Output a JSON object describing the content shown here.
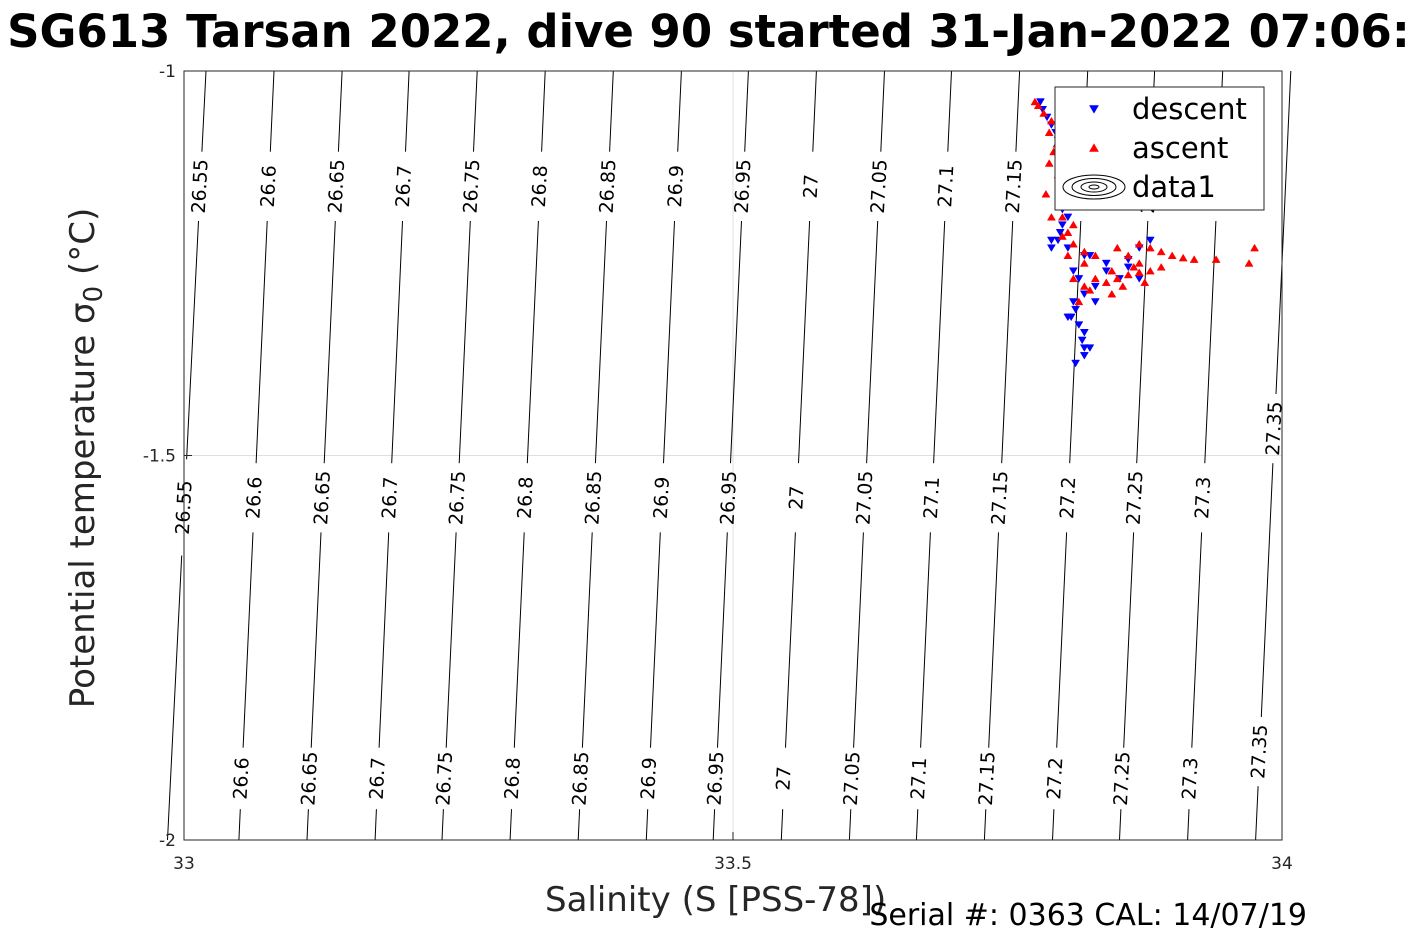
{
  "title": "SG613 Tarsan 2022, dive 90 started 31-Jan-2022 07:06:",
  "footer": "Serial #: 0363  CAL: 14/07/19",
  "chart_data": {
    "type": "scatter",
    "title": "SG613 Tarsan 2022, dive 90 started 31-Jan-2022 07:06:",
    "xlabel": "Salinity (S [PSS-78])",
    "ylabel": "Potential temperature σ0 (°C)",
    "xlim": [
      33,
      34
    ],
    "ylim": [
      -2,
      -1
    ],
    "xticks": [
      "33",
      "33.5",
      "34"
    ],
    "yticks": [
      "-1",
      "-1.5",
      "-2"
    ],
    "grid": true,
    "legend_position": "top-right",
    "legend": [
      "descent",
      "ascent",
      "data1"
    ],
    "contours": {
      "name": "data1",
      "levels": [
        26.55,
        26.6,
        26.65,
        26.7,
        26.75,
        26.8,
        26.85,
        26.9,
        26.95,
        27,
        27.05,
        27.1,
        27.15,
        27.2,
        27.25,
        27.3,
        27.35
      ],
      "labels": [
        "26.55",
        "26.6",
        "26.65",
        "26.7",
        "26.75",
        "26.8",
        "26.85",
        "26.9",
        "26.95",
        "27",
        "27.05",
        "27.1",
        "27.15",
        "27.2",
        "27.25",
        "27.3",
        "27.35"
      ],
      "top_salinity": [
        33.02,
        33.082,
        33.144,
        33.205,
        33.267,
        33.329,
        33.391,
        33.453,
        33.514,
        33.576,
        33.638,
        33.699,
        33.761,
        33.823,
        33.884,
        33.946,
        34.008
      ],
      "bottom_salinity": [
        32.985,
        33.05,
        33.112,
        33.174,
        33.235,
        33.297,
        33.359,
        33.421,
        33.482,
        33.544,
        33.606,
        33.667,
        33.729,
        33.791,
        33.852,
        33.914,
        33.976
      ]
    },
    "series": [
      {
        "name": "descent",
        "color": "#0000ff",
        "marker": "triangle-down",
        "points": [
          [
            33.78,
            -1.04
          ],
          [
            33.782,
            -1.05
          ],
          [
            33.786,
            -1.06
          ],
          [
            33.79,
            -1.07
          ],
          [
            33.794,
            -1.08
          ],
          [
            33.796,
            -1.09
          ],
          [
            33.798,
            -1.1
          ],
          [
            33.795,
            -1.11
          ],
          [
            33.8,
            -1.12
          ],
          [
            33.802,
            -1.13
          ],
          [
            33.797,
            -1.14
          ],
          [
            33.804,
            -1.15
          ],
          [
            33.8,
            -1.16
          ],
          [
            33.806,
            -1.17
          ],
          [
            33.8,
            -1.18
          ],
          [
            33.805,
            -1.19
          ],
          [
            33.8,
            -1.2
          ],
          [
            33.798,
            -1.21
          ],
          [
            33.796,
            -1.22
          ],
          [
            33.79,
            -1.23
          ],
          [
            33.805,
            -1.23
          ],
          [
            33.82,
            -1.24
          ],
          [
            33.84,
            -1.25
          ],
          [
            33.86,
            -1.245
          ],
          [
            33.87,
            -1.23
          ],
          [
            33.88,
            -1.22
          ],
          [
            33.84,
            -1.26
          ],
          [
            33.852,
            -1.27
          ],
          [
            33.86,
            -1.255
          ],
          [
            33.87,
            -1.27
          ],
          [
            33.83,
            -1.28
          ],
          [
            33.815,
            -1.27
          ],
          [
            33.82,
            -1.29
          ],
          [
            33.81,
            -1.3
          ],
          [
            33.812,
            -1.31
          ],
          [
            33.808,
            -1.32
          ],
          [
            33.815,
            -1.33
          ],
          [
            33.82,
            -1.34
          ],
          [
            33.818,
            -1.35
          ],
          [
            33.805,
            -1.32
          ],
          [
            33.812,
            -1.38
          ],
          [
            33.82,
            -1.37
          ],
          [
            33.825,
            -1.36
          ],
          [
            33.83,
            -1.3
          ],
          [
            33.82,
            -1.36
          ],
          [
            33.79,
            -1.22
          ],
          [
            33.81,
            -1.26
          ],
          [
            33.825,
            -1.24
          ]
        ]
      },
      {
        "name": "ascent",
        "color": "#ff0000",
        "marker": "triangle-up",
        "points": [
          [
            33.775,
            -1.04
          ],
          [
            33.778,
            -1.045
          ],
          [
            33.783,
            -1.055
          ],
          [
            33.79,
            -1.065
          ],
          [
            33.788,
            -1.08
          ],
          [
            33.795,
            -1.095
          ],
          [
            33.792,
            -1.105
          ],
          [
            33.798,
            -1.115
          ],
          [
            33.8,
            -1.125
          ],
          [
            33.796,
            -1.135
          ],
          [
            33.803,
            -1.145
          ],
          [
            33.799,
            -1.155
          ],
          [
            33.806,
            -1.165
          ],
          [
            33.802,
            -1.175
          ],
          [
            33.8,
            -1.19
          ],
          [
            33.81,
            -1.2
          ],
          [
            33.805,
            -1.21
          ],
          [
            33.8,
            -1.215
          ],
          [
            33.81,
            -1.225
          ],
          [
            33.82,
            -1.235
          ],
          [
            33.83,
            -1.24
          ],
          [
            33.805,
            -1.24
          ],
          [
            33.82,
            -1.25
          ],
          [
            33.83,
            -1.27
          ],
          [
            33.82,
            -1.28
          ],
          [
            33.81,
            -1.27
          ],
          [
            33.825,
            -1.285
          ],
          [
            33.84,
            -1.275
          ],
          [
            33.85,
            -1.27
          ],
          [
            33.86,
            -1.265
          ],
          [
            33.87,
            -1.262
          ],
          [
            33.88,
            -1.26
          ],
          [
            33.89,
            -1.255
          ],
          [
            33.87,
            -1.25
          ],
          [
            33.86,
            -1.24
          ],
          [
            33.85,
            -1.23
          ],
          [
            33.87,
            -1.225
          ],
          [
            33.88,
            -1.23
          ],
          [
            33.89,
            -1.235
          ],
          [
            33.9,
            -1.24
          ],
          [
            33.91,
            -1.243
          ],
          [
            33.92,
            -1.245
          ],
          [
            33.94,
            -1.245
          ],
          [
            33.97,
            -1.25
          ],
          [
            33.975,
            -1.23
          ],
          [
            33.875,
            -1.275
          ],
          [
            33.855,
            -1.28
          ],
          [
            33.845,
            -1.29
          ],
          [
            33.815,
            -1.3
          ],
          [
            33.79,
            -1.19
          ],
          [
            33.785,
            -1.16
          ],
          [
            33.788,
            -1.12
          ],
          [
            33.845,
            -1.26
          ],
          [
            33.865,
            -1.255
          ]
        ]
      }
    ]
  }
}
